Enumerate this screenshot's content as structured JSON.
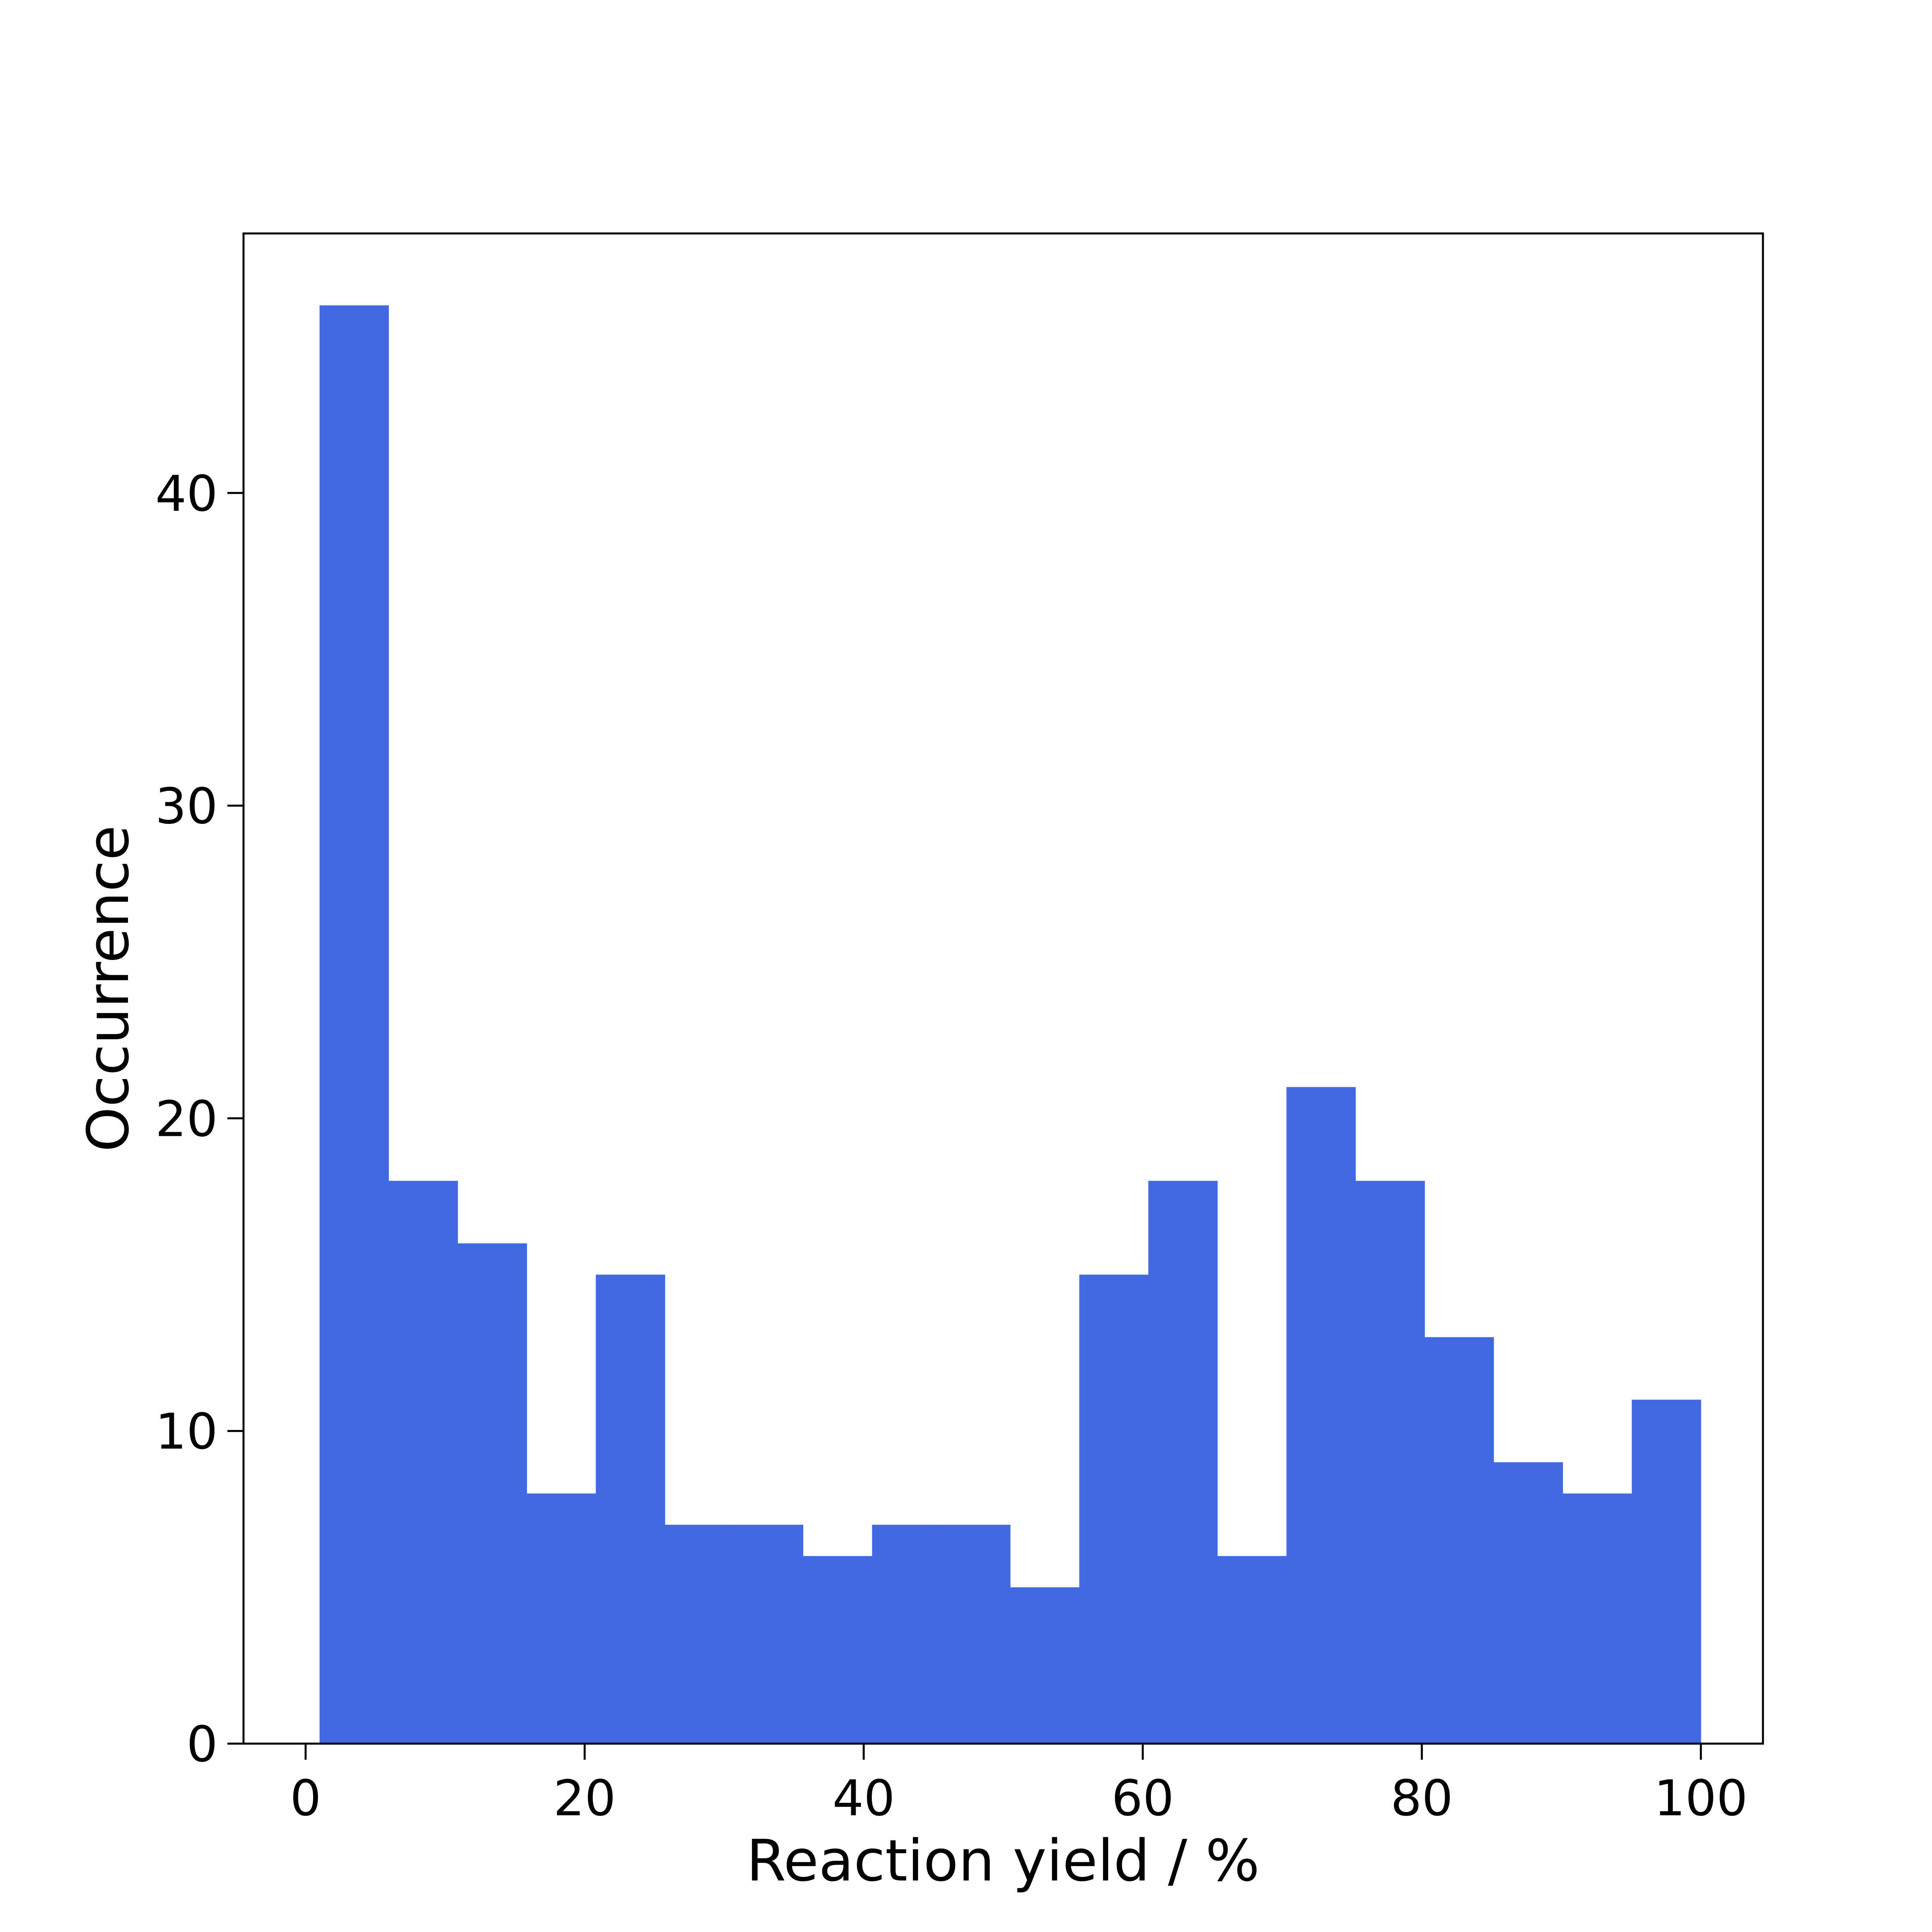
{
  "chart_data": {
    "type": "bar",
    "title": "",
    "xlabel": "Reaction yield / %",
    "ylabel": "Occurrence",
    "xlim": [
      -4.45,
      104.45
    ],
    "ylim": [
      0,
      48.3
    ],
    "xticks": [
      0,
      20,
      40,
      60,
      80,
      100
    ],
    "xtick_labels": [
      "0",
      "20",
      "40",
      "60",
      "80",
      "100"
    ],
    "yticks": [
      0,
      10,
      20,
      30,
      40
    ],
    "ytick_labels": [
      "0",
      "10",
      "20",
      "30",
      "40"
    ],
    "grid": false,
    "legend": "none",
    "bin_edges": [
      1.0,
      5.95,
      10.9,
      15.85,
      20.8,
      25.75,
      30.7,
      35.65,
      40.6,
      45.55,
      50.5,
      55.45,
      60.4,
      65.35,
      70.3,
      75.25,
      80.2,
      85.15,
      90.1,
      95.05,
      100.0
    ],
    "values": [
      46,
      18,
      16,
      8,
      15,
      7,
      7,
      6,
      7,
      7,
      5,
      15,
      18,
      6,
      21,
      18,
      13,
      9,
      8,
      11
    ],
    "color": "#4169e1"
  }
}
